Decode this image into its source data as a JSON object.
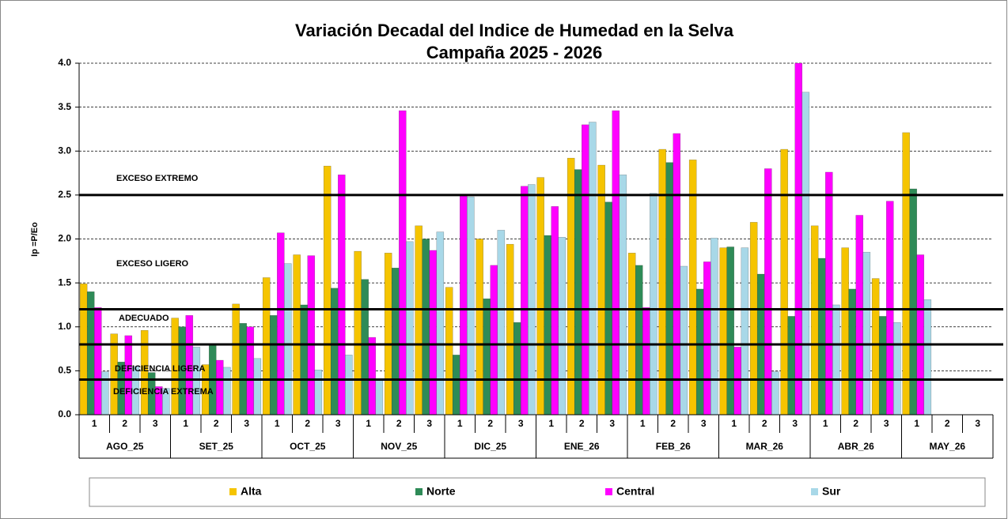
{
  "chart_data": {
    "type": "bar",
    "title": "Variación Decadal del Indice de Humedad en la Selva",
    "subtitle": "Campaña 2025 - 2026",
    "y_label": "Ip =P/Eo",
    "categories": [
      "1",
      "2",
      "3",
      "1",
      "2",
      "3",
      "1",
      "2",
      "3",
      "1",
      "2",
      "3",
      "1",
      "2",
      "3",
      "1",
      "2",
      "3",
      "1",
      "2",
      "3",
      "1",
      "2",
      "3",
      "1",
      "2",
      "3",
      "1",
      "2",
      "3"
    ],
    "groups": [
      "AGO_25",
      "SET_25",
      "OCT_25",
      "NOV_25",
      "DIC_25",
      "ENE_26",
      "FEB_26",
      "MAR_26",
      "ABR_26",
      "MAY_26"
    ],
    "series": [
      {
        "name": "Alta",
        "color": "#f5c400",
        "values": [
          1.49,
          0.92,
          0.96,
          1.1,
          0.57,
          1.26,
          1.56,
          1.82,
          2.83,
          1.86,
          1.84,
          2.15,
          1.45,
          2.0,
          1.94,
          2.7,
          2.92,
          2.84,
          1.84,
          3.02,
          2.9,
          1.9,
          2.19,
          3.02,
          2.15,
          1.9,
          1.55,
          3.21,
          null,
          null
        ]
      },
      {
        "name": "Norte",
        "color": "#2e8b57",
        "values": [
          1.4,
          0.6,
          0.48,
          1.0,
          0.81,
          1.04,
          1.13,
          1.25,
          1.44,
          1.54,
          1.67,
          2.0,
          0.68,
          1.32,
          1.05,
          2.04,
          2.79,
          2.42,
          1.7,
          2.87,
          1.43,
          1.91,
          1.6,
          1.12,
          1.78,
          1.43,
          1.12,
          2.57,
          null,
          null
        ]
      },
      {
        "name": "Central",
        "color": "#ff00ff",
        "values": [
          1.22,
          0.9,
          0.32,
          1.13,
          0.62,
          1.0,
          2.07,
          1.81,
          2.73,
          0.88,
          3.46,
          1.87,
          2.49,
          1.7,
          2.6,
          2.37,
          3.3,
          3.46,
          1.22,
          3.2,
          1.74,
          0.77,
          2.8,
          4.0,
          2.76,
          2.27,
          2.43,
          1.82,
          null,
          null
        ]
      },
      {
        "name": "Sur",
        "color": "#a8d8e8",
        "values": [
          0.49,
          0.55,
          0.3,
          0.77,
          0.54,
          0.64,
          1.72,
          0.51,
          0.68,
          0.4,
          1.97,
          2.08,
          2.48,
          2.1,
          2.62,
          2.02,
          3.33,
          2.73,
          2.52,
          1.69,
          2.01,
          1.9,
          0.49,
          3.67,
          1.25,
          1.85,
          1.05,
          1.31,
          null,
          null
        ]
      }
    ],
    "ylim": [
      0,
      4
    ],
    "yticks": [
      {
        "value": 0,
        "label": "0.0"
      },
      {
        "value": 0.5,
        "label": "0.5"
      },
      {
        "value": 1,
        "label": "1.0"
      },
      {
        "value": 1.5,
        "label": "1.5"
      },
      {
        "value": 2,
        "label": "2.0"
      },
      {
        "value": 2.5,
        "label": "2.5"
      },
      {
        "value": 3,
        "label": "3.0"
      },
      {
        "value": 3.5,
        "label": "3.5"
      },
      {
        "value": 4,
        "label": "4.0"
      }
    ],
    "grid": true,
    "reference_lines": [
      2.5,
      1.2,
      0.8,
      0.4
    ],
    "zones": [
      "EXCESO EXTREMO",
      "EXCESO LIGERO",
      "ADECUADO",
      "DEFICIENCIA LIGERA",
      "DEFICIENCIA EXTREMA"
    ],
    "legend": "bottom"
  }
}
